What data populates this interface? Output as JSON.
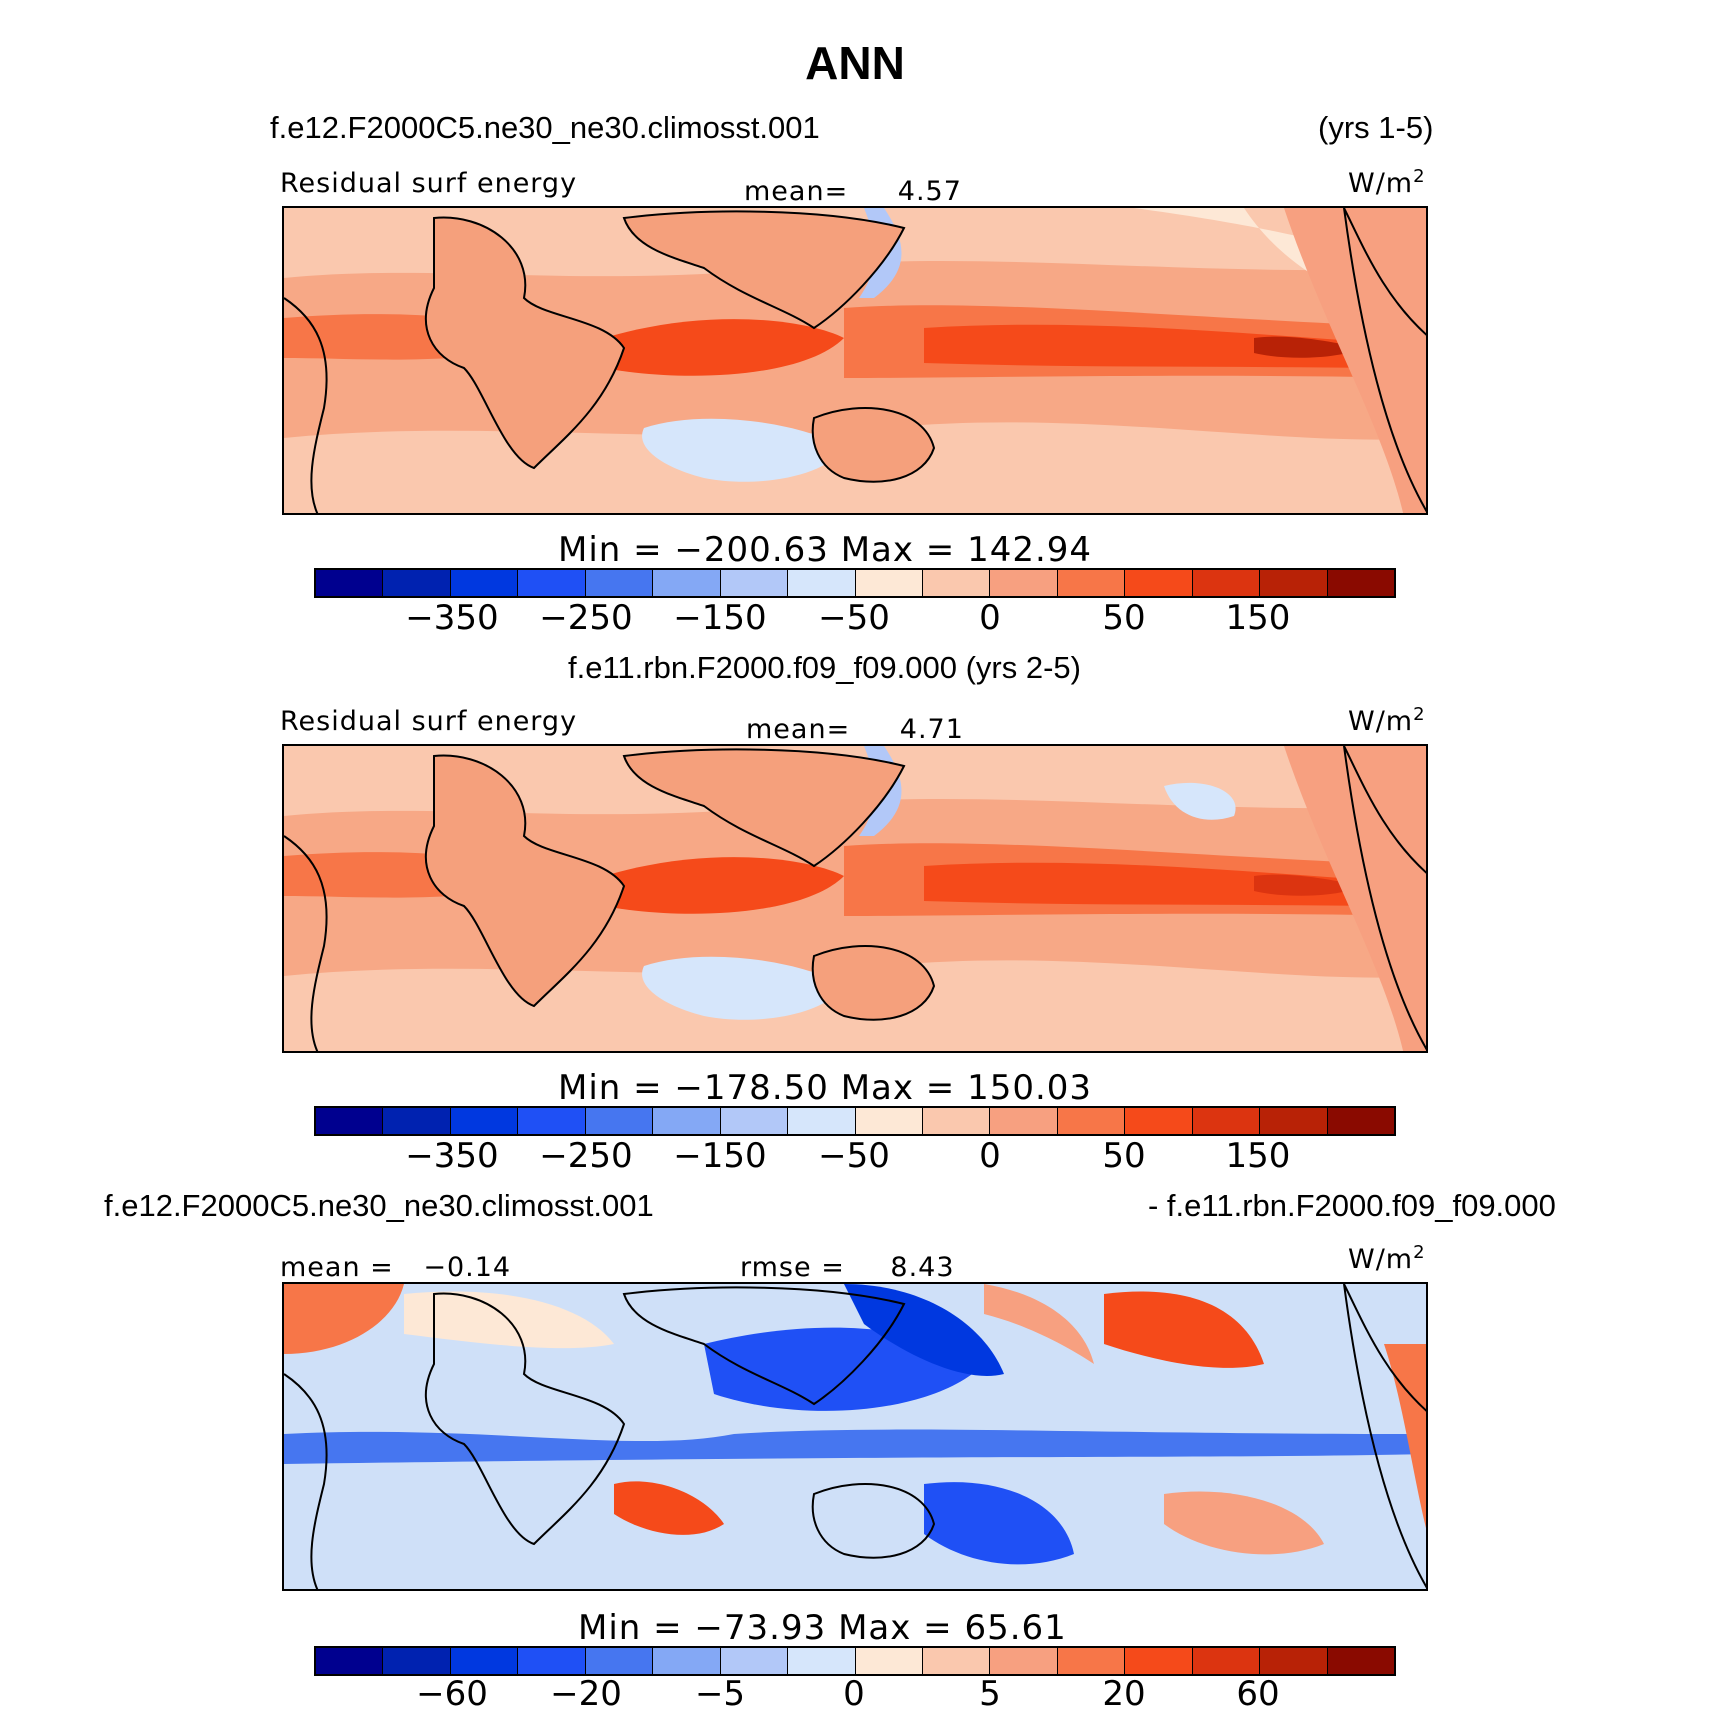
{
  "figure": {
    "title": "ANN",
    "panel1": {
      "case": "f.e12.F2000C5.ne30_ne30.climosst.001",
      "years": "(yrs 1-5)",
      "variable": "Residual surf energy",
      "mean_label": "mean=",
      "mean_value": "4.57",
      "units_base": "W/m",
      "units_exp": "2",
      "minmax": "Min = −200.63  Max = 142.94",
      "ticks": [
        "−350",
        "−250",
        "−150",
        "−50",
        "0",
        "50",
        "150"
      ]
    },
    "panel2": {
      "case": "f.e11.rbn.F2000.f09_f09.000 (yrs 2-5)",
      "variable": "Residual surf energy",
      "mean_label": "mean=",
      "mean_value": "4.71",
      "units_base": "W/m",
      "units_exp": "2",
      "minmax": "Min = −178.50  Max = 150.03",
      "ticks": [
        "−350",
        "−250",
        "−150",
        "−50",
        "0",
        "50",
        "150"
      ]
    },
    "panel3": {
      "case_left": "f.e12.F2000C5.ne30_ne30.climosst.001",
      "case_right": "- f.e11.rbn.F2000.f09_f09.000",
      "mean_label": "mean = ",
      "mean_value": "−0.14",
      "rmse_label": "rmse = ",
      "rmse_value": "8.43",
      "units_base": "W/m",
      "units_exp": "2",
      "minmax": "Min = −73.93  Max =   65.61",
      "ticks": [
        "−60",
        "−20",
        "−5",
        "0",
        "5",
        "20",
        "60"
      ]
    }
  },
  "colors": {
    "colorbar": [
      "#00008f",
      "#0022b0",
      "#0038e0",
      "#1f50f5",
      "#4676f0",
      "#84a8f5",
      "#b2c8f8",
      "#d6e6fb",
      "#fde8d6",
      "#fac8ae",
      "#f7a080",
      "#f77648",
      "#f54a1a",
      "#dc3410",
      "#b82206",
      "#8a0a00"
    ],
    "land": "#f5a07c",
    "ocean_base_12": "#f7a886",
    "ocean_base_3": "#cfe0f8"
  }
}
